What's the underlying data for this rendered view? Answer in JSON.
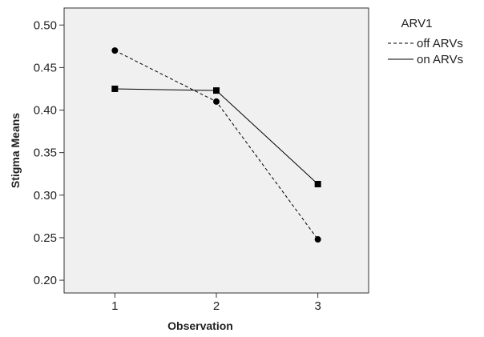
{
  "chart_data": {
    "type": "line",
    "title": "",
    "xlabel": "Observation",
    "ylabel": "Stigma Means",
    "categories": [
      "1",
      "2",
      "3"
    ],
    "x": [
      1,
      2,
      3
    ],
    "xlim": [
      0.5,
      3.5
    ],
    "ylim": [
      0.185,
      0.52
    ],
    "yticks": [
      "0.20",
      "0.25",
      "0.30",
      "0.35",
      "0.40",
      "0.45",
      "0.50"
    ],
    "yticks_values": [
      0.2,
      0.25,
      0.3,
      0.35,
      0.4,
      0.45,
      0.5
    ],
    "grid": false,
    "legend": {
      "title": "ARV1",
      "placement": "top-right-outside"
    },
    "series": [
      {
        "name": "off ARVs",
        "values": [
          0.47,
          0.41,
          0.248
        ],
        "line_style": "dashed",
        "marker": "circle",
        "color": "#000000"
      },
      {
        "name": "on ARVs",
        "values": [
          0.425,
          0.423,
          0.313
        ],
        "line_style": "solid",
        "marker": "square",
        "color": "#000000"
      }
    ],
    "colors": {
      "plot_background": "#f0f0f0",
      "axis": "#333333",
      "line": "#000000"
    }
  }
}
